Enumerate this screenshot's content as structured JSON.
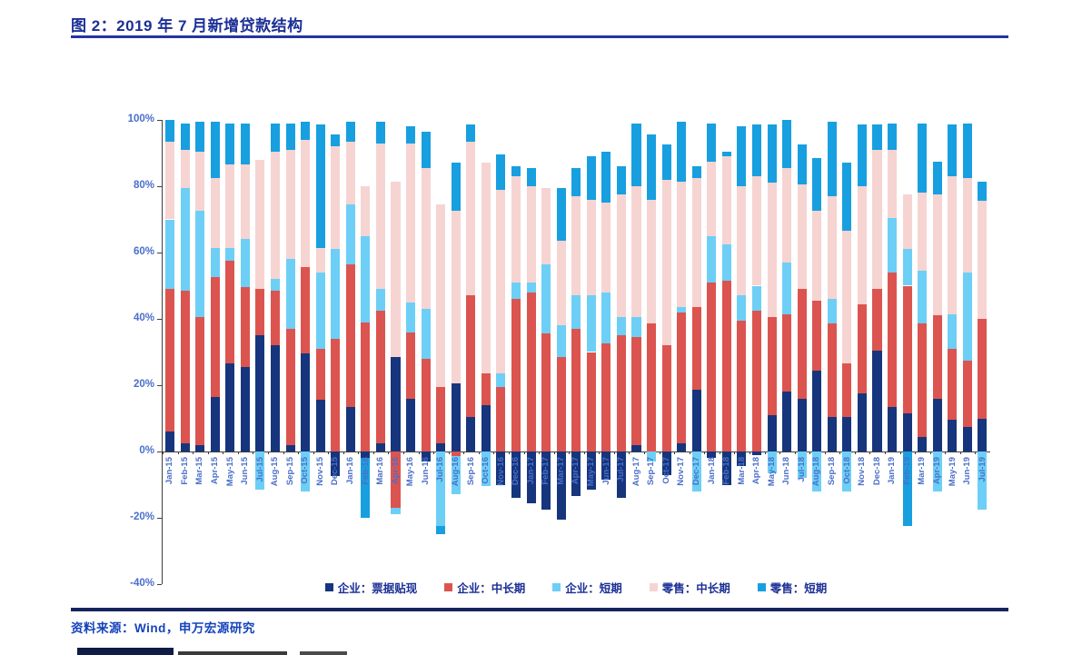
{
  "page": {
    "title": "图 2：2019 年 7 月新增贷款结构",
    "source": "资料来源：Wind，申万宏源研究"
  },
  "colors": {
    "title_text": "#1b2f96",
    "rule_top": "#2334a0",
    "rule_bottom": "#16245e",
    "source_text": "#1443bb",
    "axis_line": "#3f3f3f",
    "axis_label_text": "#4a6fc9",
    "series_navy": "#16357d",
    "series_red": "#dc544f",
    "series_lightblue": "#6dcff6",
    "series_pink": "#f6d4d2",
    "series_brightblue": "#189fe0"
  },
  "chart_data": {
    "type": "bar",
    "stacked": true,
    "unit": "percent",
    "ylim": [
      -40,
      100
    ],
    "ytick_step": 20,
    "ytick_labels": [
      "100%",
      "80%",
      "60%",
      "40%",
      "20%",
      "0%",
      "-20%",
      "-40%"
    ],
    "grid": false,
    "legend_position": "bottom",
    "categories": [
      "Jan-15",
      "Feb-15",
      "Mar-15",
      "Apr-15",
      "May-15",
      "Jun-15",
      "Jul-15",
      "Aug-15",
      "Sep-15",
      "Oct-15",
      "Nov-15",
      "Dec-15",
      "Jan-16",
      "Feb-16",
      "Mar-16",
      "Apr-16",
      "May-16",
      "Jun-16",
      "Jul-16",
      "Aug-16",
      "Sep-16",
      "Oct-16",
      "Nov-16",
      "Dec-16",
      "Jan-17",
      "Feb-17",
      "Mar-17",
      "Apr-17",
      "May-17",
      "Jun-17",
      "Jul-17",
      "Aug-17",
      "Sep-17",
      "Oct-17",
      "Nov-17",
      "Dec-17",
      "Jan-18",
      "Feb-18",
      "Mar-18",
      "Apr-18",
      "May-18",
      "Jun-18",
      "Jul-18",
      "Aug-18",
      "Sep-18",
      "Oct-18",
      "Nov-18",
      "Dec-18",
      "Jan-19",
      "Feb-19",
      "Mar-19",
      "Apr-19",
      "May-19",
      "Jun-19",
      "Jul-19"
    ],
    "series": [
      {
        "name": "企业：票据贴现",
        "key": "navy",
        "color": "#16357d",
        "values": [
          6,
          2.5,
          2,
          16.5,
          26.5,
          25.5,
          35,
          32,
          2,
          29.5,
          15.5,
          -7.5,
          13.5,
          -2,
          2.5,
          28.5,
          16,
          -3,
          2.5,
          20.5,
          10.5,
          14,
          -10,
          -14,
          -15.5,
          -17.5,
          -20.5,
          -13.5,
          -11.5,
          -8.5,
          -14,
          2,
          0,
          -7,
          2.5,
          18.5,
          -2,
          -10,
          -4.5,
          -1,
          11,
          18,
          16,
          24.5,
          10.5,
          10.5,
          17.5,
          30.5,
          13.5,
          11.5,
          4.5,
          16,
          9.5,
          7.5,
          10
        ]
      },
      {
        "name": "企业：中长期",
        "key": "red",
        "color": "#dc544f",
        "values": [
          43,
          46,
          38.5,
          36,
          31,
          24,
          14,
          16.5,
          35,
          26,
          15.5,
          34,
          43,
          39,
          40,
          -17,
          20,
          28,
          17,
          -1.5,
          36.5,
          9.5,
          19.5,
          46,
          48,
          35.5,
          28.5,
          37,
          30,
          32.5,
          35,
          32.5,
          38.5,
          32,
          39.5,
          25,
          51,
          51.5,
          39.5,
          42.5,
          29.5,
          23.5,
          33,
          21,
          28,
          16,
          27,
          18.5,
          40.5,
          38.5,
          34,
          25,
          21.5,
          20,
          30
        ]
      },
      {
        "name": "企业：短期",
        "key": "lightblue",
        "color": "#6dcff6",
        "values": [
          21,
          31,
          32,
          9,
          4,
          14.5,
          -11.5,
          3.5,
          21,
          -12,
          23,
          27,
          18,
          26,
          6.5,
          -2,
          9,
          15,
          -22.5,
          -11.5,
          0,
          -10.5,
          4,
          5,
          3,
          21,
          9.5,
          10,
          17,
          15.5,
          5.5,
          6,
          -3,
          0,
          1.5,
          -12,
          14,
          11,
          7.5,
          7.5,
          -6.5,
          15.5,
          -8,
          -12,
          7.5,
          -12,
          0,
          0,
          16.5,
          11,
          16,
          -12,
          10.5,
          26.5,
          -17.5
        ]
      },
      {
        "name": "零售：中长期",
        "key": "pink",
        "color": "#f6d4d2",
        "values": [
          23.5,
          11.5,
          18,
          21,
          25,
          22.5,
          39,
          38.5,
          33,
          38.5,
          7.5,
          31,
          19,
          15,
          44,
          53,
          48,
          42.5,
          55,
          52,
          46.5,
          63.5,
          55.5,
          32,
          29,
          23,
          25.5,
          30,
          29,
          27,
          37,
          39.5,
          37.5,
          50,
          38,
          39,
          22.5,
          26.5,
          33,
          33,
          40.5,
          28.5,
          31.5,
          27,
          31,
          40,
          35.5,
          42,
          20.5,
          16.5,
          23.5,
          36.5,
          41.5,
          28.5,
          35.5
        ]
      },
      {
        "name": "零售：短期",
        "key": "brightblue",
        "color": "#189fe0",
        "values": [
          6.5,
          8,
          9,
          17,
          12.5,
          12.5,
          0,
          8.5,
          8,
          5.5,
          37,
          3.5,
          6,
          -18,
          6.5,
          0,
          5,
          11,
          -2.5,
          14.5,
          5,
          0,
          10.5,
          3,
          5.5,
          0,
          16,
          8.5,
          13,
          15.5,
          8.5,
          19,
          19.5,
          10.5,
          18,
          3.5,
          11.5,
          1.5,
          18,
          15.5,
          17.5,
          14.5,
          12,
          16,
          22.5,
          20.5,
          18.5,
          7.5,
          8,
          -22.5,
          21,
          10,
          15.5,
          16.5,
          6
        ]
      }
    ]
  }
}
